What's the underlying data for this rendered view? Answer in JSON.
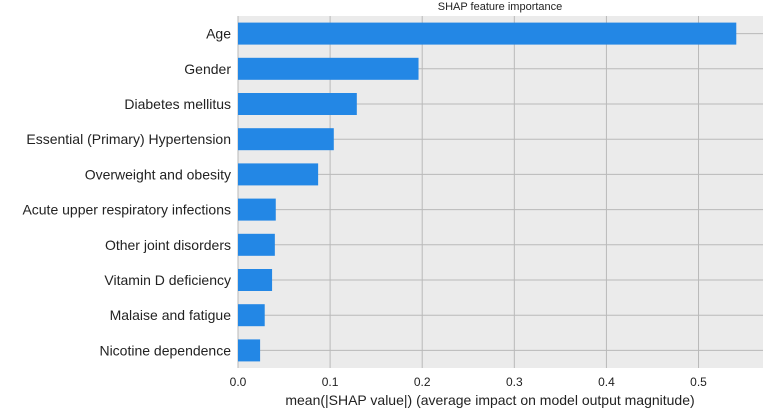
{
  "chart_data": {
    "type": "bar",
    "orientation": "horizontal",
    "title": "SHAP feature importance",
    "xlabel": "mean(|SHAP value|) (average impact on model output magnitude)",
    "ylabel": "",
    "categories": [
      "Age",
      "Gender",
      "Diabetes mellitus",
      "Essential (Primary) Hypertension",
      "Overweight and obesity",
      "Acute upper respiratory infections",
      "Other joint disorders",
      "Vitamin D deficiency",
      "Malaise and fatigue",
      "Nicotine dependence"
    ],
    "values": [
      0.541,
      0.196,
      0.129,
      0.104,
      0.087,
      0.041,
      0.04,
      0.037,
      0.029,
      0.024
    ],
    "xlim": [
      0,
      0.57
    ],
    "xticks": [
      0.0,
      0.1,
      0.2,
      0.3,
      0.4,
      0.5
    ],
    "xtick_labels": [
      "0.0",
      "0.1",
      "0.2",
      "0.3",
      "0.4",
      "0.5"
    ],
    "grid": true,
    "colors": {
      "bar": "#2387E5",
      "plot_background": "#EBEBEB",
      "grid": "#B9B9B9",
      "text": "#222222"
    }
  }
}
